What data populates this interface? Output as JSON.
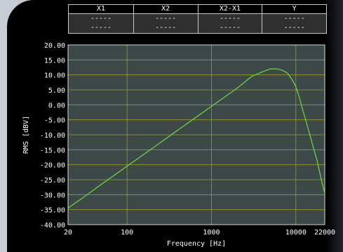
{
  "cursor_table": {
    "columns": [
      {
        "header": "X1",
        "row1": "-----",
        "row2": "-----"
      },
      {
        "header": "X2",
        "row1": "-----",
        "row2": "-----"
      },
      {
        "header": "X2-X1",
        "row1": "-----",
        "row2": "-----"
      },
      {
        "header": "Y",
        "row1": "-----",
        "row2": "-----"
      }
    ]
  },
  "chart_data": {
    "type": "line",
    "xlabel": "Frequency [Hz]",
    "ylabel": "RMS [dBV]",
    "xscale": "log",
    "xlim": [
      20,
      22000
    ],
    "ylim": [
      -40,
      20
    ],
    "x_ticks": [
      20,
      100,
      1000,
      10000,
      22000
    ],
    "x_tick_labels": [
      "20",
      "100",
      "1000",
      "10000",
      "22000"
    ],
    "y_ticks": [
      20,
      15,
      10,
      5,
      0,
      -5,
      -10,
      -15,
      -20,
      -25,
      -30,
      -35,
      -40
    ],
    "y_tick_labels": [
      "20.00",
      "15.00",
      "10.00",
      "5.00",
      "0.00",
      "-5.00",
      "-10.00",
      "-15.00",
      "-20.00",
      "-25.00",
      "-30.00",
      "-35.00",
      "-40.00"
    ],
    "grid": true,
    "colors": {
      "background": "#3d4848",
      "grid": "#9c9c24",
      "line": "#6cdc3c"
    },
    "series": [
      {
        "x": [
          20,
          30,
          50,
          100,
          200,
          500,
          1000,
          2000,
          3000,
          4000,
          5000,
          6000,
          7000,
          8000,
          9000,
          10000,
          11000,
          12000,
          14000,
          16000,
          18000,
          20000,
          22000
        ],
        "y": [
          -34.5,
          -31.0,
          -26.5,
          -20.5,
          -14.5,
          -6.5,
          -0.5,
          5.5,
          9.5,
          11.0,
          12.0,
          12.0,
          11.5,
          10.5,
          8.5,
          6.0,
          2.5,
          -1.5,
          -8.0,
          -14.0,
          -19.0,
          -25.0,
          -29.5
        ]
      }
    ]
  }
}
